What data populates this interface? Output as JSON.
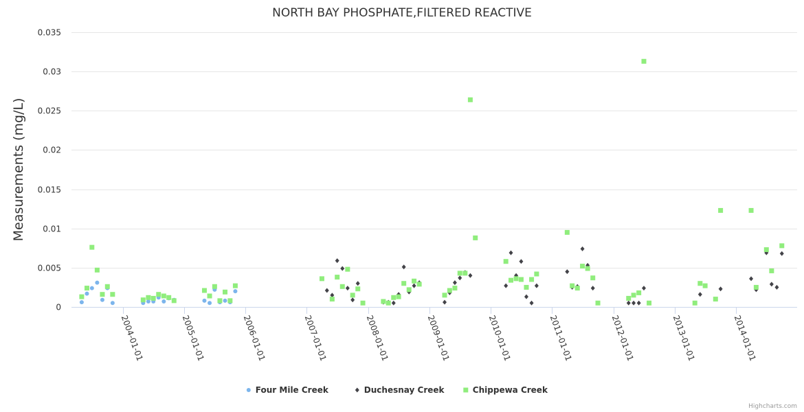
{
  "chart_data": {
    "type": "scatter",
    "title": "NORTH BAY PHOSPHATE,FILTERED REACTIVE",
    "ylabel": "Measurements (mg/L)",
    "xlabel": "",
    "ylim": [
      0,
      0.035
    ],
    "yticks": [
      0,
      0.005,
      0.01,
      0.015,
      0.02,
      0.025,
      0.03,
      0.035
    ],
    "ytick_labels": [
      "0",
      "0.005",
      "0.01",
      "0.015",
      "0.02",
      "0.025",
      "0.03",
      "0.035"
    ],
    "xlim": [
      "2003-03-01",
      "2014-12-31"
    ],
    "xticks": [
      "2004-01-01",
      "2005-01-01",
      "2006-01-01",
      "2007-01-01",
      "2008-01-01",
      "2009-01-01",
      "2010-01-01",
      "2011-01-01",
      "2012-01-01",
      "2013-01-01",
      "2014-01-01"
    ],
    "grid": true,
    "legend_position": "bottom-center",
    "credits": "Highcharts.com",
    "series": [
      {
        "name": "Four Mile Creek",
        "marker": "circle",
        "color": "#7cb5ec",
        "points": [
          [
            "2003-05-01",
            0.0006
          ],
          [
            "2003-06-01",
            0.0017
          ],
          [
            "2003-07-01",
            0.0024
          ],
          [
            "2003-08-01",
            0.0031
          ],
          [
            "2003-09-01",
            0.0009
          ],
          [
            "2003-10-01",
            0.0024
          ],
          [
            "2003-11-01",
            0.0005
          ],
          [
            "2004-05-01",
            0.0005
          ],
          [
            "2004-06-01",
            0.0007
          ],
          [
            "2004-07-01",
            0.0007
          ],
          [
            "2004-08-01",
            0.0012
          ],
          [
            "2004-09-01",
            0.0007
          ],
          [
            "2004-10-01",
            0.0011
          ],
          [
            "2004-11-01",
            0.0009
          ],
          [
            "2005-05-01",
            0.0008
          ],
          [
            "2005-06-01",
            0.0005
          ],
          [
            "2005-07-01",
            0.0022
          ],
          [
            "2005-08-01",
            0.0006
          ],
          [
            "2005-09-01",
            0.0008
          ],
          [
            "2005-10-01",
            0.0006
          ],
          [
            "2005-11-01",
            0.002
          ]
        ]
      },
      {
        "name": "Duchesnay Creek",
        "marker": "diamond",
        "color": "#434348",
        "points": [
          [
            "2007-05-01",
            0.0021
          ],
          [
            "2007-06-01",
            0.0015
          ],
          [
            "2007-07-01",
            0.0059
          ],
          [
            "2007-08-01",
            0.0049
          ],
          [
            "2007-09-01",
            0.0024
          ],
          [
            "2007-10-01",
            0.0009
          ],
          [
            "2007-11-01",
            0.003
          ],
          [
            "2008-04-01",
            0.0006
          ],
          [
            "2008-05-01",
            0.0006
          ],
          [
            "2008-06-01",
            0.0005
          ],
          [
            "2008-07-01",
            0.0016
          ],
          [
            "2008-08-01",
            0.0051
          ],
          [
            "2008-09-01",
            0.0019
          ],
          [
            "2008-10-01",
            0.0027
          ],
          [
            "2008-11-01",
            0.0031
          ],
          [
            "2009-04-01",
            0.0006
          ],
          [
            "2009-05-01",
            0.0018
          ],
          [
            "2009-06-01",
            0.0031
          ],
          [
            "2009-07-01",
            0.0037
          ],
          [
            "2009-08-01",
            0.0044
          ],
          [
            "2009-09-01",
            0.004
          ],
          [
            "2010-04-01",
            0.0027
          ],
          [
            "2010-05-01",
            0.0069
          ],
          [
            "2010-06-01",
            0.004
          ],
          [
            "2010-07-01",
            0.0058
          ],
          [
            "2010-08-01",
            0.0013
          ],
          [
            "2010-09-01",
            0.0005
          ],
          [
            "2010-10-01",
            0.0027
          ],
          [
            "2011-04-01",
            0.0045
          ],
          [
            "2011-05-01",
            0.0025
          ],
          [
            "2011-06-01",
            0.0026
          ],
          [
            "2011-07-01",
            0.0074
          ],
          [
            "2011-08-01",
            0.0053
          ],
          [
            "2011-09-01",
            0.0024
          ],
          [
            "2012-04-01",
            0.0005
          ],
          [
            "2012-05-01",
            0.0005
          ],
          [
            "2012-06-01",
            0.0005
          ],
          [
            "2012-07-01",
            0.0024
          ],
          [
            "2013-05-01",
            0.0005
          ],
          [
            "2013-06-01",
            0.0016
          ],
          [
            "2013-10-01",
            0.0023
          ],
          [
            "2014-04-01",
            0.0036
          ],
          [
            "2014-05-01",
            0.0022
          ],
          [
            "2014-07-01",
            0.0069
          ],
          [
            "2014-08-01",
            0.0029
          ],
          [
            "2014-09-01",
            0.0025
          ],
          [
            "2014-10-01",
            0.0068
          ]
        ]
      },
      {
        "name": "Chippewa Creek",
        "marker": "square",
        "color": "#90ed7d",
        "points": [
          [
            "2003-05-01",
            0.0013
          ],
          [
            "2003-06-01",
            0.0024
          ],
          [
            "2003-07-01",
            0.0076
          ],
          [
            "2003-08-01",
            0.0047
          ],
          [
            "2003-09-01",
            0.0016
          ],
          [
            "2003-10-01",
            0.0026
          ],
          [
            "2003-11-01",
            0.0016
          ],
          [
            "2004-05-01",
            0.0009
          ],
          [
            "2004-06-01",
            0.0012
          ],
          [
            "2004-07-01",
            0.0011
          ],
          [
            "2004-08-01",
            0.0016
          ],
          [
            "2004-09-01",
            0.0014
          ],
          [
            "2004-10-01",
            0.0012
          ],
          [
            "2004-11-01",
            0.0008
          ],
          [
            "2005-05-01",
            0.0021
          ],
          [
            "2005-06-01",
            0.0014
          ],
          [
            "2005-07-01",
            0.0026
          ],
          [
            "2005-08-01",
            0.0008
          ],
          [
            "2005-09-01",
            0.0019
          ],
          [
            "2005-10-01",
            0.0008
          ],
          [
            "2005-11-01",
            0.0027
          ],
          [
            "2007-04-01",
            0.0036
          ],
          [
            "2007-06-01",
            0.001
          ],
          [
            "2007-07-01",
            0.0038
          ],
          [
            "2007-08-01",
            0.0026
          ],
          [
            "2007-09-01",
            0.0048
          ],
          [
            "2007-10-01",
            0.0015
          ],
          [
            "2007-11-01",
            0.0023
          ],
          [
            "2007-12-01",
            0.0005
          ],
          [
            "2008-04-01",
            0.0007
          ],
          [
            "2008-05-01",
            0.0005
          ],
          [
            "2008-06-01",
            0.0012
          ],
          [
            "2008-07-01",
            0.0013
          ],
          [
            "2008-08-01",
            0.003
          ],
          [
            "2008-09-01",
            0.0022
          ],
          [
            "2008-10-01",
            0.0033
          ],
          [
            "2008-11-01",
            0.0029
          ],
          [
            "2009-04-01",
            0.0015
          ],
          [
            "2009-05-01",
            0.0021
          ],
          [
            "2009-06-01",
            0.0024
          ],
          [
            "2009-07-01",
            0.0043
          ],
          [
            "2009-08-01",
            0.0043
          ],
          [
            "2009-09-01",
            0.0264
          ],
          [
            "2009-10-01",
            0.0088
          ],
          [
            "2010-04-01",
            0.0058
          ],
          [
            "2010-05-01",
            0.0034
          ],
          [
            "2010-06-01",
            0.0036
          ],
          [
            "2010-07-01",
            0.0035
          ],
          [
            "2010-08-01",
            0.0025
          ],
          [
            "2010-09-01",
            0.0035
          ],
          [
            "2010-10-01",
            0.0042
          ],
          [
            "2011-04-01",
            0.0095
          ],
          [
            "2011-05-01",
            0.0027
          ],
          [
            "2011-06-01",
            0.0024
          ],
          [
            "2011-07-01",
            0.0052
          ],
          [
            "2011-08-01",
            0.0049
          ],
          [
            "2011-09-01",
            0.0037
          ],
          [
            "2011-10-01",
            0.0005
          ],
          [
            "2012-04-01",
            0.0011
          ],
          [
            "2012-05-01",
            0.0015
          ],
          [
            "2012-06-01",
            0.0018
          ],
          [
            "2012-07-01",
            0.0313
          ],
          [
            "2012-08-01",
            0.0005
          ],
          [
            "2013-05-01",
            0.0005
          ],
          [
            "2013-06-01",
            0.003
          ],
          [
            "2013-07-01",
            0.0027
          ],
          [
            "2013-09-01",
            0.001
          ],
          [
            "2013-10-01",
            0.0123
          ],
          [
            "2014-04-01",
            0.0123
          ],
          [
            "2014-05-01",
            0.0025
          ],
          [
            "2014-07-01",
            0.0073
          ],
          [
            "2014-08-01",
            0.0046
          ],
          [
            "2014-10-01",
            0.0078
          ]
        ]
      }
    ]
  }
}
